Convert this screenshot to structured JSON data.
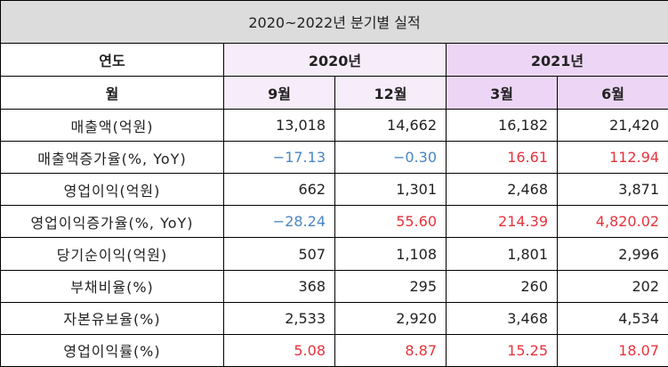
{
  "title": "2020~2022년 분기별 실적",
  "header": {
    "year_label": "연도",
    "month_label": "월",
    "years": [
      "2020년",
      "2021년"
    ],
    "months": [
      "9월",
      "12월",
      "3월",
      "6월"
    ]
  },
  "rows": [
    {
      "label": "매출액(억원)",
      "values": [
        "13,018",
        "14,662",
        "16,182",
        "21,420"
      ],
      "tones": [
        "plain",
        "plain",
        "plain",
        "plain"
      ]
    },
    {
      "label": "매출액증가율(%, YoY)",
      "values": [
        "−17.13",
        "−0.30",
        "16.61",
        "112.94"
      ],
      "tones": [
        "neg",
        "neg",
        "pos",
        "pos"
      ]
    },
    {
      "label": "영업이익(억원)",
      "values": [
        "662",
        "1,301",
        "2,468",
        "3,871"
      ],
      "tones": [
        "plain",
        "plain",
        "plain",
        "plain"
      ]
    },
    {
      "label": "영업이익증가율(%, YoY)",
      "values": [
        "−28.24",
        "55.60",
        "214.39",
        "4,820.02"
      ],
      "tones": [
        "neg",
        "pos",
        "pos",
        "pos"
      ]
    },
    {
      "label": "당기순이익(억원)",
      "values": [
        "507",
        "1,108",
        "1,801",
        "2,996"
      ],
      "tones": [
        "plain",
        "plain",
        "plain",
        "plain"
      ]
    },
    {
      "label": "부채비율(%)",
      "values": [
        "368",
        "295",
        "260",
        "202"
      ],
      "tones": [
        "plain",
        "plain",
        "plain",
        "plain"
      ]
    },
    {
      "label": "자본유보율(%)",
      "values": [
        "2,533",
        "2,920",
        "3,468",
        "4,534"
      ],
      "tones": [
        "plain",
        "plain",
        "plain",
        "plain"
      ]
    },
    {
      "label": "영업이익률(%)",
      "values": [
        "5.08",
        "8.87",
        "15.25",
        "18.07"
      ],
      "tones": [
        "pos",
        "pos",
        "pos",
        "pos"
      ]
    }
  ],
  "colors": {
    "negative": "#4a85c2",
    "positive": "#e8333c",
    "title_bg": "#dcdcdc",
    "header_2020_bg": "#f7ecfa",
    "header_2021_bg": "#edd6f5"
  }
}
